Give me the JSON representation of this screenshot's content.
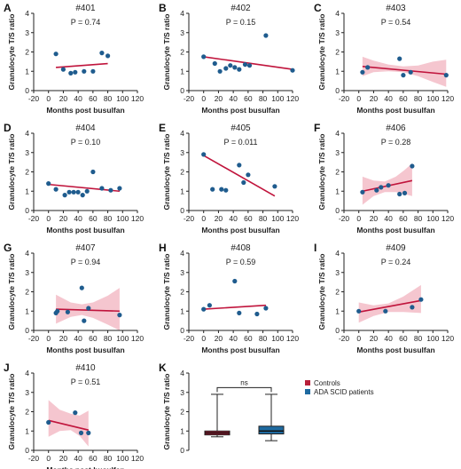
{
  "colors": {
    "point": "#1f5c8e",
    "line": "#c0143c",
    "band": "#f2b3bf",
    "controls": "#b81f3a",
    "patients": "#1e6aa0",
    "axis": "#222222"
  },
  "chart_data": [
    {
      "letter": "A",
      "type": "scatter",
      "title": "#401",
      "pvalue": "P = 0.74",
      "xlabel": "Months post busulfan",
      "ylabel": "Granulocyte T/S ratio",
      "xlim": [
        -20,
        120
      ],
      "ylim": [
        0,
        4
      ],
      "xticks": [
        "-20",
        "0",
        "20",
        "40",
        "60",
        "80",
        "100",
        "120"
      ],
      "yticks": [
        "0",
        "1",
        "2",
        "3",
        "4"
      ],
      "points": [
        [
          10,
          1.9
        ],
        [
          20,
          1.1
        ],
        [
          30,
          0.9
        ],
        [
          36,
          0.95
        ],
        [
          48,
          1.0
        ],
        [
          60,
          1.0
        ],
        [
          72,
          1.95
        ],
        [
          80,
          1.8
        ]
      ],
      "fit": [
        [
          10,
          1.2
        ],
        [
          80,
          1.4
        ]
      ],
      "band": null
    },
    {
      "letter": "B",
      "type": "scatter",
      "title": "#402",
      "pvalue": "P = 0.15",
      "xlabel": "Months post busulfan",
      "ylabel": "Granulocyte T/S ratio",
      "xlim": [
        -20,
        120
      ],
      "ylim": [
        0,
        4
      ],
      "xticks": [
        "-20",
        "0",
        "20",
        "40",
        "60",
        "80",
        "100",
        "120"
      ],
      "yticks": [
        "0",
        "1",
        "2",
        "3",
        "4"
      ],
      "points": [
        [
          0,
          1.75
        ],
        [
          15,
          1.4
        ],
        [
          22,
          1.0
        ],
        [
          30,
          1.15
        ],
        [
          36,
          1.3
        ],
        [
          42,
          1.2
        ],
        [
          48,
          1.1
        ],
        [
          56,
          1.35
        ],
        [
          62,
          1.3
        ],
        [
          84,
          2.85
        ],
        [
          120,
          1.05
        ]
      ],
      "fit": [
        [
          0,
          1.75
        ],
        [
          120,
          1.1
        ]
      ],
      "band": null
    },
    {
      "letter": "C",
      "type": "scatter",
      "title": "#403",
      "pvalue": "P = 0.54",
      "xlabel": "Months post busulfan",
      "ylabel": "Granulocyte T/S ratio",
      "xlim": [
        -20,
        120
      ],
      "ylim": [
        0,
        4
      ],
      "xticks": [
        "-20",
        "0",
        "20",
        "40",
        "60",
        "80",
        "100",
        "120"
      ],
      "yticks": [
        "0",
        "1",
        "2",
        "3",
        "4"
      ],
      "points": [
        [
          5,
          0.95
        ],
        [
          12,
          1.2
        ],
        [
          55,
          1.65
        ],
        [
          60,
          0.8
        ],
        [
          70,
          0.95
        ],
        [
          118,
          0.8
        ]
      ],
      "fit": [
        [
          5,
          1.25
        ],
        [
          118,
          0.85
        ]
      ],
      "band": [
        [
          5,
          0.75,
          1.75
        ],
        [
          20,
          0.95,
          1.55
        ],
        [
          40,
          1.0,
          1.35
        ],
        [
          60,
          0.95,
          1.25
        ],
        [
          80,
          0.75,
          1.3
        ],
        [
          100,
          0.45,
          1.5
        ],
        [
          118,
          0.2,
          1.6
        ]
      ]
    },
    {
      "letter": "D",
      "type": "scatter",
      "title": "#404",
      "pvalue": "P = 0.10",
      "xlabel": "Months post busulfan",
      "ylabel": "Granulocyte T/S ratio",
      "xlim": [
        -20,
        120
      ],
      "ylim": [
        0,
        4
      ],
      "xticks": [
        "-20",
        "0",
        "20",
        "40",
        "60",
        "80",
        "100",
        "120"
      ],
      "yticks": [
        "0",
        "1",
        "2",
        "3",
        "4"
      ],
      "points": [
        [
          0,
          1.4
        ],
        [
          10,
          1.1
        ],
        [
          22,
          0.8
        ],
        [
          28,
          0.95
        ],
        [
          34,
          0.95
        ],
        [
          40,
          0.95
        ],
        [
          46,
          0.8
        ],
        [
          52,
          1.0
        ],
        [
          60,
          2.0
        ],
        [
          72,
          1.15
        ],
        [
          84,
          1.05
        ],
        [
          96,
          1.15
        ]
      ],
      "fit": [
        [
          0,
          1.35
        ],
        [
          96,
          1.0
        ]
      ],
      "band": null
    },
    {
      "letter": "E",
      "type": "scatter",
      "title": "#405",
      "pvalue": "P = 0.011",
      "xlabel": "Months post busulfan",
      "ylabel": "Granulocyte T/S ratio",
      "xlim": [
        -20,
        120
      ],
      "ylim": [
        0,
        4
      ],
      "xticks": [
        "-20",
        "0",
        "20",
        "40",
        "60",
        "80",
        "100",
        "120"
      ],
      "yticks": [
        "0",
        "1",
        "2",
        "3",
        "4"
      ],
      "points": [
        [
          0,
          2.9
        ],
        [
          12,
          1.1
        ],
        [
          24,
          1.1
        ],
        [
          30,
          1.05
        ],
        [
          48,
          2.35
        ],
        [
          54,
          1.45
        ],
        [
          60,
          1.85
        ],
        [
          96,
          1.25
        ]
      ],
      "fit": [
        [
          0,
          2.85
        ],
        [
          96,
          0.75
        ]
      ],
      "band": null
    },
    {
      "letter": "F",
      "type": "scatter",
      "title": "#406",
      "pvalue": "P = 0.28",
      "xlabel": "Months post busulfan",
      "ylabel": "Granulocyte T/S ratio",
      "xlim": [
        -20,
        120
      ],
      "ylim": [
        0,
        4
      ],
      "xticks": [
        "-20",
        "0",
        "20",
        "40",
        "60",
        "80",
        "100",
        "120"
      ],
      "yticks": [
        "0",
        "1",
        "2",
        "3",
        "4"
      ],
      "points": [
        [
          5,
          0.95
        ],
        [
          24,
          1.05
        ],
        [
          30,
          1.2
        ],
        [
          40,
          1.3
        ],
        [
          55,
          0.85
        ],
        [
          62,
          0.9
        ],
        [
          72,
          2.3
        ]
      ],
      "fit": [
        [
          5,
          1.0
        ],
        [
          72,
          1.55
        ]
      ],
      "band": [
        [
          5,
          0.3,
          1.75
        ],
        [
          20,
          0.75,
          1.55
        ],
        [
          35,
          0.95,
          1.5
        ],
        [
          50,
          0.95,
          1.75
        ],
        [
          62,
          0.85,
          2.1
        ],
        [
          72,
          0.75,
          2.45
        ]
      ]
    },
    {
      "letter": "G",
      "type": "scatter",
      "title": "#407",
      "pvalue": "P = 0.94",
      "xlabel": "Months post busulfan",
      "ylabel": "Granulocyte T/S ratio",
      "xlim": [
        -20,
        120
      ],
      "ylim": [
        0,
        4
      ],
      "xticks": [
        "-20",
        "0",
        "20",
        "40",
        "60",
        "80",
        "100",
        "120"
      ],
      "yticks": [
        "0",
        "1",
        "2",
        "3",
        "4"
      ],
      "points": [
        [
          10,
          0.9
        ],
        [
          12,
          1.0
        ],
        [
          26,
          0.95
        ],
        [
          45,
          2.2
        ],
        [
          48,
          0.5
        ],
        [
          54,
          1.15
        ],
        [
          96,
          0.8
        ]
      ],
      "fit": [
        [
          10,
          1.1
        ],
        [
          96,
          1.0
        ]
      ],
      "band": [
        [
          10,
          0.35,
          1.85
        ],
        [
          30,
          0.7,
          1.45
        ],
        [
          45,
          0.8,
          1.35
        ],
        [
          60,
          0.65,
          1.45
        ],
        [
          80,
          0.3,
          1.8
        ],
        [
          96,
          0.0,
          2.2
        ]
      ]
    },
    {
      "letter": "H",
      "type": "scatter",
      "title": "#408",
      "pvalue": "P = 0.59",
      "xlabel": "Months post busulfan",
      "ylabel": "Granulocyte T/S ratio",
      "xlim": [
        -20,
        120
      ],
      "ylim": [
        0,
        4
      ],
      "xticks": [
        "-20",
        "0",
        "20",
        "40",
        "60",
        "80",
        "100",
        "120"
      ],
      "yticks": [
        "0",
        "1",
        "2",
        "3",
        "4"
      ],
      "points": [
        [
          0,
          1.1
        ],
        [
          8,
          1.3
        ],
        [
          42,
          2.55
        ],
        [
          48,
          0.9
        ],
        [
          72,
          0.85
        ],
        [
          84,
          1.15
        ]
      ],
      "fit": [
        [
          0,
          1.1
        ],
        [
          84,
          1.3
        ]
      ],
      "band": null
    },
    {
      "letter": "I",
      "type": "scatter",
      "title": "#409",
      "pvalue": "P = 0.24",
      "xlabel": "Months post busulfan",
      "ylabel": "Granulocyte T/S ratio",
      "xlim": [
        -20,
        120
      ],
      "ylim": [
        0,
        4
      ],
      "xticks": [
        "-20",
        "0",
        "20",
        "40",
        "60",
        "80",
        "100",
        "120"
      ],
      "yticks": [
        "0",
        "1",
        "2",
        "3",
        "4"
      ],
      "points": [
        [
          0,
          1.0
        ],
        [
          36,
          1.0
        ],
        [
          72,
          1.2
        ],
        [
          84,
          1.6
        ]
      ],
      "fit": [
        [
          0,
          0.95
        ],
        [
          84,
          1.55
        ]
      ],
      "band": [
        [
          0,
          0.4,
          1.45
        ],
        [
          20,
          0.75,
          1.3
        ],
        [
          40,
          0.95,
          1.4
        ],
        [
          60,
          0.95,
          1.75
        ],
        [
          84,
          0.9,
          2.35
        ]
      ]
    },
    {
      "letter": "J",
      "type": "scatter",
      "title": "#410",
      "pvalue": "P = 0.51",
      "xlabel": "Months post busulfan",
      "ylabel": "Granulocyte T/S ratio",
      "xlim": [
        -20,
        120
      ],
      "ylim": [
        0,
        4
      ],
      "xticks": [
        "-20",
        "0",
        "20",
        "40",
        "60",
        "80",
        "100",
        "120"
      ],
      "yticks": [
        "0",
        "1",
        "2",
        "3",
        "4"
      ],
      "points": [
        [
          0,
          1.45
        ],
        [
          36,
          1.95
        ],
        [
          44,
          0.9
        ],
        [
          54,
          0.9
        ]
      ],
      "fit": [
        [
          0,
          1.55
        ],
        [
          54,
          1.05
        ]
      ],
      "band": [
        [
          0,
          0.7,
          2.6
        ],
        [
          15,
          1.0,
          2.1
        ],
        [
          30,
          1.05,
          1.9
        ],
        [
          42,
          0.75,
          1.8
        ],
        [
          54,
          0.2,
          2.05
        ]
      ]
    },
    {
      "letter": "K",
      "type": "boxplot",
      "title": "",
      "ylabel": "Granulocyte T/S ratio",
      "ylim": [
        0,
        4
      ],
      "yticks": [
        "0",
        "1",
        "2",
        "3",
        "4"
      ],
      "annotation": "ns",
      "legend": [
        "Controls",
        "ADA SCID patients"
      ],
      "boxes": [
        {
          "name": "Controls",
          "min": 0.7,
          "q1": 0.8,
          "median": 0.9,
          "q3": 1.0,
          "max": 2.9
        },
        {
          "name": "ADA SCID patients",
          "min": 0.5,
          "q1": 0.85,
          "median": 1.0,
          "q3": 1.25,
          "max": 2.9
        }
      ]
    }
  ]
}
